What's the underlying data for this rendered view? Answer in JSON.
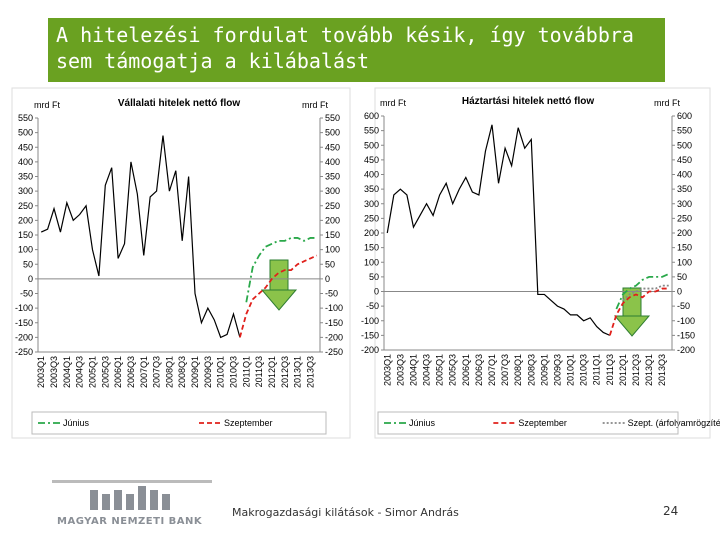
{
  "slide": {
    "title": "A hitelezési fordulat tovább késik, így továbbra sem támogatja a kilábalást",
    "footer": "Makrogazdasági kilátások - Simor András",
    "page": "24",
    "bank": "MAGYAR NEMZETI BANK"
  },
  "chart_data": [
    {
      "type": "line",
      "title": "Vállalati hitelek nettó flow",
      "ylabel": "mrd Ft",
      "y2label": "mrd Ft",
      "categories": [
        "2003Q1",
        null,
        "2003Q3",
        null,
        "2004Q1",
        null,
        "2004Q3",
        null,
        "2005Q1",
        null,
        "2005Q3",
        null,
        "2006Q1",
        null,
        "2006Q3",
        null,
        "2007Q1",
        null,
        "2007Q3",
        null,
        "2008Q1",
        null,
        "2008Q3",
        null,
        "2009Q1",
        null,
        "2009Q3",
        null,
        "2010Q1",
        null,
        "2010Q3",
        null,
        "2011Q1",
        null,
        "2011Q3",
        null,
        "2012Q1",
        null,
        "2012Q3",
        null,
        "2013Q1",
        null,
        "2013Q3",
        null
      ],
      "series": [
        {
          "color": "#000000",
          "values": [
            160,
            170,
            240,
            160,
            260,
            200,
            220,
            250,
            100,
            10,
            320,
            380,
            70,
            120,
            400,
            290,
            80,
            280,
            300,
            490,
            300,
            370,
            130,
            350,
            -50,
            -150,
            -100,
            -140,
            -200,
            -190,
            -120,
            -200,
            null,
            null,
            null,
            null,
            null,
            null,
            null,
            null,
            null,
            null,
            null,
            null
          ]
        },
        {
          "name": "Június",
          "color": "#2aa84a",
          "style": "dashdot",
          "values": [
            null,
            null,
            null,
            null,
            null,
            null,
            null,
            null,
            null,
            null,
            null,
            null,
            null,
            null,
            null,
            null,
            null,
            null,
            null,
            null,
            null,
            null,
            null,
            null,
            null,
            null,
            null,
            null,
            null,
            null,
            null,
            null,
            -80,
            40,
            80,
            110,
            120,
            130,
            130,
            140,
            140,
            130,
            140,
            140
          ]
        },
        {
          "name": "Szeptember",
          "color": "#e0201b",
          "style": "dash",
          "values": [
            null,
            null,
            null,
            null,
            null,
            null,
            null,
            null,
            null,
            null,
            null,
            null,
            null,
            null,
            null,
            null,
            null,
            null,
            null,
            null,
            null,
            null,
            null,
            null,
            null,
            null,
            null,
            null,
            null,
            null,
            null,
            -200,
            -120,
            -70,
            -50,
            -30,
            0,
            20,
            30,
            30,
            50,
            60,
            70,
            80
          ]
        }
      ],
      "ylim": [
        -250,
        550
      ],
      "yticks": [
        -250,
        -200,
        -150,
        -100,
        -50,
        0,
        50,
        100,
        150,
        200,
        250,
        300,
        350,
        400,
        450,
        500,
        550
      ],
      "y2lim": [
        -250,
        550
      ],
      "y2ticks": [
        -250,
        -200,
        -150,
        -100,
        -50,
        0,
        50,
        100,
        150,
        200,
        250,
        300,
        350,
        400,
        450,
        500,
        550
      ]
    },
    {
      "type": "line",
      "title": "Háztartási hitelek nettó flow",
      "ylabel": "mrd Ft",
      "y2label": "mrd Ft",
      "categories": [
        "2003Q1",
        null,
        "2003Q3",
        null,
        "2004Q1",
        null,
        "2004Q3",
        null,
        "2005Q1",
        null,
        "2005Q3",
        null,
        "2006Q1",
        null,
        "2006Q3",
        null,
        "2007Q1",
        null,
        "2007Q3",
        null,
        "2008Q1",
        null,
        "2008Q3",
        null,
        "2009Q1",
        null,
        "2009Q3",
        null,
        "2010Q1",
        null,
        "2010Q3",
        null,
        "2011Q1",
        null,
        "2011Q3",
        null,
        "2012Q1",
        null,
        "2012Q3",
        null,
        "2013Q1",
        null,
        "2013Q3",
        null
      ],
      "series": [
        {
          "color": "#000000",
          "values": [
            200,
            330,
            350,
            330,
            220,
            260,
            300,
            260,
            330,
            370,
            300,
            350,
            390,
            340,
            330,
            480,
            570,
            370,
            490,
            430,
            560,
            490,
            520,
            -10,
            -10,
            -30,
            -50,
            -60,
            -80,
            -80,
            -100,
            -90,
            -120,
            -140,
            -150,
            null,
            null,
            null,
            null,
            null,
            null,
            null,
            null,
            null
          ]
        },
        {
          "name": "Június",
          "color": "#2aa84a",
          "style": "dashdot",
          "values": [
            null,
            null,
            null,
            null,
            null,
            null,
            null,
            null,
            null,
            null,
            null,
            null,
            null,
            null,
            null,
            null,
            null,
            null,
            null,
            null,
            null,
            null,
            null,
            null,
            null,
            null,
            null,
            null,
            null,
            null,
            null,
            null,
            null,
            null,
            null,
            -60,
            -10,
            10,
            20,
            40,
            50,
            50,
            50,
            60
          ]
        },
        {
          "name": "Szeptember",
          "color": "#e0201b",
          "style": "dash",
          "values": [
            null,
            null,
            null,
            null,
            null,
            null,
            null,
            null,
            null,
            null,
            null,
            null,
            null,
            null,
            null,
            null,
            null,
            null,
            null,
            null,
            null,
            null,
            null,
            null,
            null,
            null,
            null,
            null,
            null,
            null,
            null,
            null,
            null,
            null,
            -150,
            -80,
            -40,
            -20,
            -10,
            -20,
            0,
            0,
            10,
            10
          ]
        },
        {
          "name": "Szept. (árfolyamrögzítéssel)",
          "color": "#888888",
          "style": "dot",
          "values": [
            null,
            null,
            null,
            null,
            null,
            null,
            null,
            null,
            null,
            null,
            null,
            null,
            null,
            null,
            null,
            null,
            null,
            null,
            null,
            null,
            null,
            null,
            null,
            null,
            null,
            null,
            null,
            null,
            null,
            null,
            null,
            null,
            null,
            null,
            null,
            null,
            -30,
            -10,
            0,
            10,
            10,
            10,
            20,
            20
          ]
        }
      ],
      "ylim": [
        -200,
        600
      ],
      "yticks": [
        -200,
        -150,
        -100,
        -50,
        0,
        50,
        100,
        150,
        200,
        250,
        300,
        350,
        400,
        450,
        500,
        550,
        600
      ],
      "y2lim": [
        -200,
        600
      ],
      "y2ticks": [
        -200,
        -150,
        -100,
        -50,
        0,
        50,
        100,
        150,
        200,
        250,
        300,
        350,
        400,
        450,
        500,
        550,
        600
      ]
    }
  ]
}
